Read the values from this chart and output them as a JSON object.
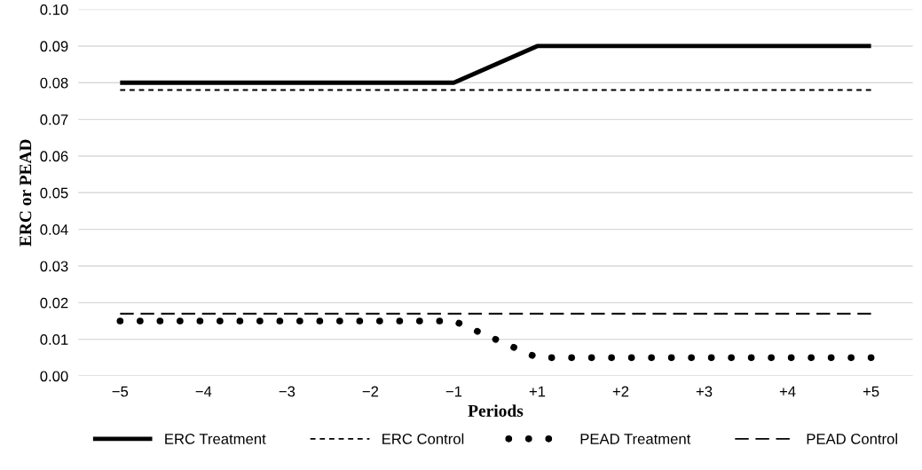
{
  "chart_data": {
    "type": "line",
    "xlabel": "Periods",
    "ylabel": "ERC or PEAD",
    "categories": [
      "−5",
      "−4",
      "−3",
      "−2",
      "−1",
      "+1",
      "+2",
      "+3",
      "+4",
      "+5"
    ],
    "series": [
      {
        "name": "ERC Treatment",
        "color": "#000000",
        "line_style": "solid",
        "values": [
          0.08,
          0.08,
          0.08,
          0.08,
          0.08,
          0.09,
          0.09,
          0.09,
          0.09,
          0.09
        ]
      },
      {
        "name": "ERC Control",
        "color": "#000000",
        "line_style": "dashed",
        "values": [
          0.078,
          0.078,
          0.078,
          0.078,
          0.078,
          0.078,
          0.078,
          0.078,
          0.078,
          0.078
        ]
      },
      {
        "name": "PEAD Treatment",
        "color": "#000000",
        "line_style": "dotted",
        "values": [
          0.015,
          0.015,
          0.015,
          0.015,
          0.015,
          0.005,
          0.005,
          0.005,
          0.005,
          0.005
        ]
      },
      {
        "name": "PEAD Control",
        "color": "#000000",
        "line_style": "dashed",
        "values": [
          0.017,
          0.017,
          0.017,
          0.017,
          0.017,
          0.017,
          0.017,
          0.017,
          0.017,
          0.017
        ]
      }
    ],
    "ylim": [
      0,
      0.1
    ],
    "yticks": [
      {
        "value": 0,
        "label": "0.00"
      },
      {
        "value": 0.01,
        "label": "0.01"
      },
      {
        "value": 0.02,
        "label": "0.02"
      },
      {
        "value": 0.03,
        "label": "0.03"
      },
      {
        "value": 0.04,
        "label": "0.04"
      },
      {
        "value": 0.05,
        "label": "0.05"
      },
      {
        "value": 0.06,
        "label": "0.06"
      },
      {
        "value": 0.07,
        "label": "0.07"
      },
      {
        "value": 0.08,
        "label": "0.08"
      },
      {
        "value": 0.09,
        "label": "0.09"
      },
      {
        "value": 0.1,
        "label": "0.10"
      }
    ],
    "grid": "y",
    "legend": "bottom",
    "marker": "none"
  }
}
